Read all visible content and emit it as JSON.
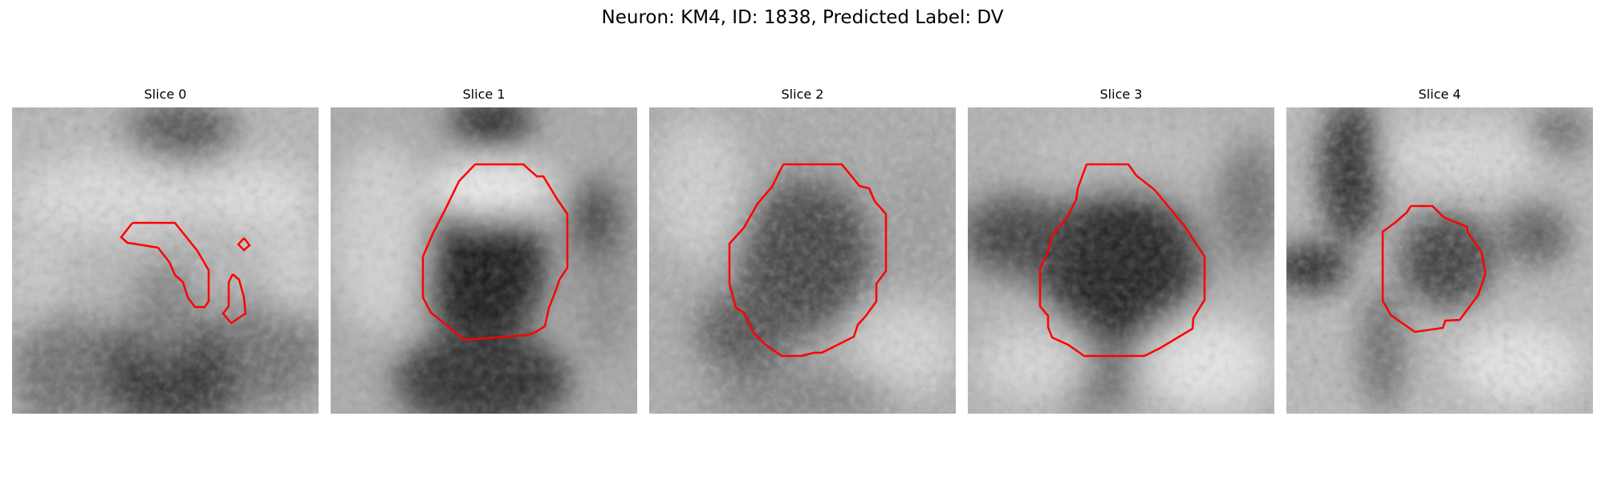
{
  "figure": {
    "title": "Neuron: KM4, ID: 1838, Predicted Label: DV"
  },
  "contour_color": "#ff0000",
  "panels": [
    {
      "title": "Slice 0"
    },
    {
      "title": "Slice 1"
    },
    {
      "title": "Slice 2"
    },
    {
      "title": "Slice 3"
    },
    {
      "title": "Slice 4"
    }
  ]
}
